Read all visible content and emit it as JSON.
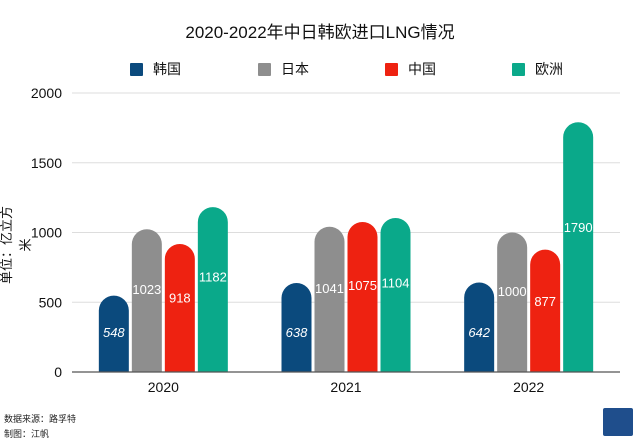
{
  "chart_data": {
    "type": "bar",
    "title": "2020-2022年中日韩欧进口LNG情况",
    "ylabel": "单位：亿立方米",
    "xlabel": "",
    "categories": [
      "2020",
      "2021",
      "2022"
    ],
    "series": [
      {
        "name": "韩国",
        "color": "#0b4a7d",
        "values": [
          548,
          638,
          642
        ]
      },
      {
        "name": "日本",
        "color": "#8e8e8e",
        "values": [
          1023,
          1041,
          1000
        ]
      },
      {
        "name": "中国",
        "color": "#ee2211",
        "values": [
          918,
          1075,
          877
        ]
      },
      {
        "name": "欧洲",
        "color": "#0aa98a",
        "values": [
          1182,
          1104,
          1790
        ]
      }
    ],
    "ylim": [
      0,
      2000
    ],
    "yticks": [
      0,
      500,
      1000,
      1500,
      2000
    ],
    "grid": true,
    "legend": "top"
  },
  "footer": {
    "source": "数据来源：路孚特",
    "author": "制图：江帆"
  },
  "logo_text": "财经十一人"
}
